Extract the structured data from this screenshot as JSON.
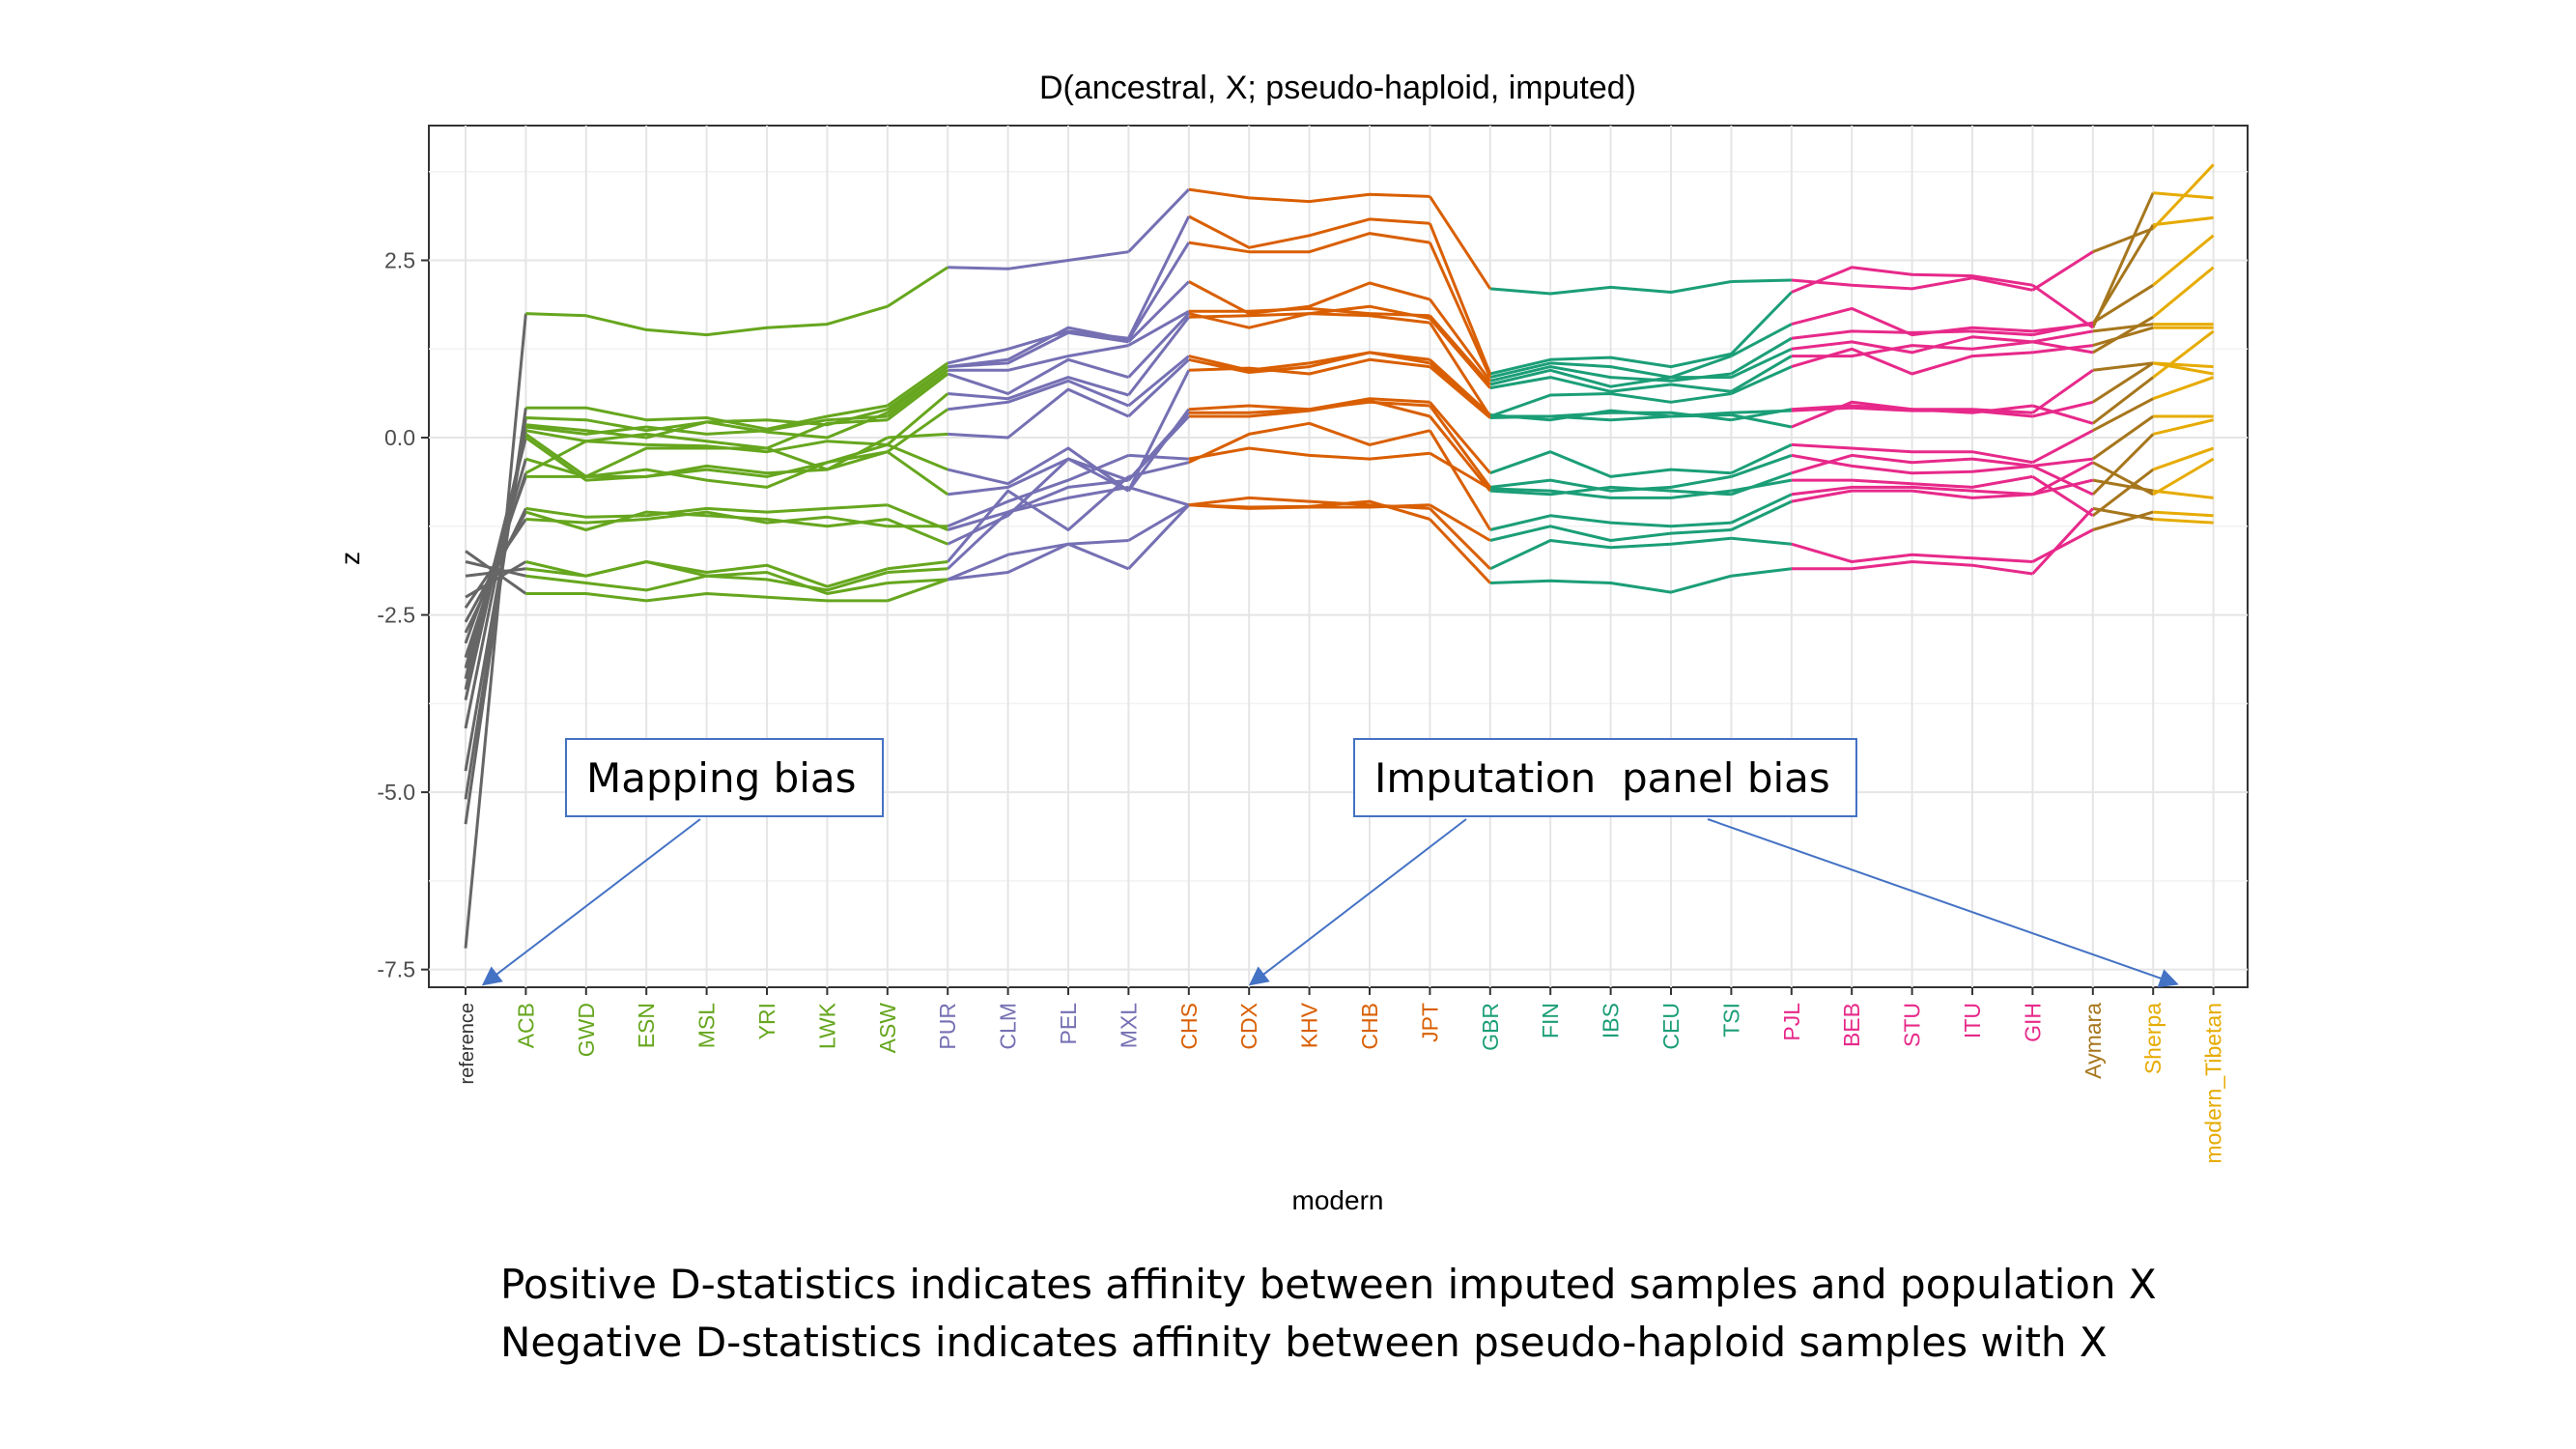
{
  "chart_data": {
    "type": "line",
    "title": "D(ancestral, X; pseudo-haploid, imputed)",
    "xlabel": "modern",
    "ylabel": "z",
    "ylim": [
      -7.75,
      4.4
    ],
    "yticks": [
      -7.5,
      -5.0,
      -2.5,
      0.0,
      2.5
    ],
    "ytick_labels": [
      "-7.5",
      "-5.0",
      "-2.5",
      "0.0",
      "2.5"
    ],
    "categories": [
      "reference",
      "ACB",
      "GWD",
      "ESN",
      "MSL",
      "YRI",
      "LWK",
      "ASW",
      "PUR",
      "CLM",
      "PEL",
      "MXL",
      "CHS",
      "CDX",
      "KHV",
      "CHB",
      "JPT",
      "GBR",
      "FIN",
      "IBS",
      "CEU",
      "TSI",
      "PJL",
      "BEB",
      "STU",
      "ITU",
      "GIH",
      "Aymara",
      "Sherpa",
      "modern_Tibetan"
    ],
    "category_colors": [
      "#333333",
      "#66a61e",
      "#66a61e",
      "#66a61e",
      "#66a61e",
      "#66a61e",
      "#66a61e",
      "#66a61e",
      "#7570b3",
      "#7570b3",
      "#7570b3",
      "#7570b3",
      "#d95f02",
      "#d95f02",
      "#d95f02",
      "#d95f02",
      "#d95f02",
      "#1b9e77",
      "#1b9e77",
      "#1b9e77",
      "#1b9e77",
      "#1b9e77",
      "#e7298a",
      "#e7298a",
      "#e7298a",
      "#e7298a",
      "#e7298a",
      "#a6761d",
      "#e6ab02",
      "#e6ab02"
    ],
    "groups": [
      {
        "color": "#666666",
        "segments": [
          [
            0,
            0
          ]
        ],
        "label_cat": 0
      },
      {
        "color": "#66a61e",
        "segments": [
          [
            1,
            7
          ]
        ]
      },
      {
        "color": "#66a61e",
        "segments": [
          [
            7,
            8
          ]
        ]
      },
      {
        "color": "#7570b3",
        "segments": [
          [
            8,
            11
          ]
        ]
      },
      {
        "color": "#7570b3",
        "segments": [
          [
            11,
            12
          ]
        ]
      },
      {
        "color": "#d95f02",
        "segments": [
          [
            12,
            16
          ]
        ]
      },
      {
        "color": "#d95f02",
        "segments": [
          [
            16,
            17
          ]
        ]
      },
      {
        "color": "#1b9e77",
        "segments": [
          [
            17,
            21
          ]
        ]
      },
      {
        "color": "#1b9e77",
        "segments": [
          [
            21,
            22
          ]
        ]
      },
      {
        "color": "#e7298a",
        "segments": [
          [
            22,
            26
          ]
        ]
      },
      {
        "color": "#e7298a",
        "segments": [
          [
            26,
            27
          ]
        ]
      },
      {
        "color": "#a6761d",
        "segments": [
          [
            27,
            28
          ]
        ]
      },
      {
        "color": "#e6ab02",
        "segments": [
          [
            28,
            29
          ]
        ]
      }
    ],
    "series": [
      {
        "values": [
          -7.2,
          1.75,
          1.72,
          1.52,
          1.45,
          1.55,
          1.6,
          1.85,
          2.4,
          2.38,
          2.5,
          2.62,
          3.5,
          3.38,
          3.33,
          3.43,
          3.4,
          2.1,
          2.03,
          2.12,
          2.05,
          2.2,
          2.22,
          2.15,
          2.1,
          2.25,
          2.08,
          2.62,
          2.95,
          3.85
        ]
      },
      {
        "values": [
          -5.45,
          0.42,
          0.42,
          0.25,
          0.28,
          0.12,
          0.3,
          0.45,
          1.05,
          1.25,
          1.5,
          1.4,
          3.12,
          2.68,
          2.85,
          3.08,
          3.02,
          0.9,
          1.1,
          1.13,
          1.0,
          1.18,
          2.05,
          2.4,
          2.3,
          2.28,
          2.15,
          1.55,
          3.45,
          3.38
        ]
      },
      {
        "values": [
          -5.1,
          0.28,
          0.25,
          0.1,
          0.22,
          0.25,
          0.18,
          0.4,
          1.0,
          1.1,
          1.55,
          1.38,
          2.75,
          2.62,
          2.62,
          2.88,
          2.75,
          0.85,
          1.05,
          1.0,
          0.85,
          1.15,
          1.6,
          1.82,
          1.45,
          1.55,
          1.5,
          1.6,
          3.0,
          3.1
        ]
      },
      {
        "values": [
          -4.7,
          0.18,
          0.1,
          0.0,
          0.22,
          0.08,
          0.0,
          0.35,
          1.0,
          1.05,
          1.48,
          1.35,
          2.2,
          1.75,
          1.85,
          2.18,
          1.95,
          0.8,
          1.0,
          0.85,
          0.8,
          0.9,
          1.4,
          1.5,
          1.48,
          1.5,
          1.45,
          1.62,
          2.15,
          2.85
        ]
      },
      {
        "values": [
          -4.1,
          0.15,
          0.05,
          0.15,
          0.05,
          0.1,
          0.25,
          0.3,
          0.95,
          0.95,
          1.15,
          1.3,
          1.78,
          1.78,
          1.82,
          1.75,
          1.72,
          0.75,
          0.95,
          0.72,
          0.85,
          0.85,
          1.25,
          1.35,
          1.2,
          1.42,
          1.35,
          1.2,
          1.7,
          2.4
        ]
      },
      {
        "values": [
          -3.7,
          0.1,
          -0.05,
          0.05,
          -0.05,
          -0.15,
          0.2,
          0.25,
          0.9,
          0.62,
          1.1,
          0.85,
          1.75,
          1.55,
          1.75,
          1.85,
          1.68,
          0.7,
          0.85,
          0.65,
          0.75,
          0.65,
          1.15,
          1.15,
          1.3,
          1.25,
          1.35,
          1.5,
          1.6,
          1.6
        ]
      },
      {
        "values": [
          -3.55,
          0.05,
          -0.55,
          -0.45,
          -0.6,
          -0.7,
          -0.35,
          -0.1,
          0.62,
          0.55,
          0.85,
          0.6,
          1.7,
          1.72,
          1.75,
          1.72,
          1.62,
          0.3,
          0.6,
          0.62,
          0.5,
          0.62,
          1.0,
          1.25,
          0.9,
          1.15,
          1.2,
          1.3,
          1.55,
          1.55
        ]
      },
      {
        "values": [
          -3.4,
          0.0,
          -0.6,
          -0.55,
          -0.4,
          -0.5,
          -0.45,
          -0.2,
          0.4,
          0.5,
          0.8,
          0.45,
          1.15,
          0.95,
          1.05,
          1.2,
          1.05,
          0.3,
          0.3,
          0.35,
          0.35,
          0.25,
          0.4,
          0.45,
          0.4,
          0.4,
          0.35,
          0.95,
          1.05,
          1.0
        ]
      },
      {
        "values": [
          -3.25,
          -0.3,
          -0.55,
          -0.15,
          -0.15,
          -0.15,
          -0.45,
          0.0,
          0.05,
          0.0,
          0.68,
          0.3,
          1.1,
          0.92,
          1.0,
          1.2,
          1.1,
          0.32,
          0.25,
          0.38,
          0.3,
          0.35,
          0.38,
          0.42,
          0.38,
          0.38,
          0.3,
          0.5,
          1.05,
          0.9
        ]
      },
      {
        "values": [
          -3.1,
          -0.5,
          -0.05,
          -0.1,
          -0.12,
          -0.2,
          -0.05,
          -0.1,
          -0.45,
          -0.65,
          -0.15,
          -0.75,
          0.95,
          0.98,
          0.9,
          1.1,
          1.0,
          0.28,
          0.3,
          0.25,
          0.3,
          0.32,
          0.15,
          0.5,
          0.4,
          0.35,
          0.45,
          0.2,
          0.85,
          1.5
        ]
      },
      {
        "values": [
          -2.9,
          -0.55,
          -0.55,
          -0.55,
          -0.45,
          -0.55,
          -0.35,
          -0.2,
          -0.8,
          -0.7,
          -0.3,
          -0.75,
          0.4,
          0.45,
          0.4,
          0.55,
          0.5,
          -0.5,
          -0.2,
          -0.55,
          -0.45,
          -0.5,
          -0.1,
          -0.15,
          -0.2,
          -0.2,
          -0.35,
          0.1,
          0.55,
          0.85
        ]
      },
      {
        "values": [
          -2.75,
          -1.0,
          -1.12,
          -1.1,
          -1.0,
          -1.05,
          -1.0,
          -0.95,
          -1.3,
          -1.05,
          -0.7,
          -0.6,
          0.35,
          0.35,
          0.4,
          0.5,
          0.45,
          -0.7,
          -0.6,
          -0.75,
          -0.7,
          -0.55,
          -0.25,
          -0.4,
          -0.5,
          -0.48,
          -0.4,
          -0.3,
          0.3,
          0.3
        ]
      },
      {
        "values": [
          -2.6,
          -1.05,
          -1.3,
          -1.05,
          -1.1,
          -1.15,
          -1.25,
          -1.15,
          -1.5,
          -1.1,
          -0.3,
          -0.6,
          0.3,
          0.3,
          0.38,
          0.52,
          0.3,
          -0.75,
          -0.8,
          -0.7,
          -0.75,
          -0.8,
          -0.5,
          -0.25,
          -0.35,
          -0.3,
          -0.4,
          -0.8,
          0.05,
          0.25
        ]
      },
      {
        "values": [
          -2.4,
          -1.15,
          -1.2,
          -1.15,
          -1.05,
          -1.2,
          -1.12,
          -1.25,
          -1.25,
          -0.9,
          -0.6,
          -0.25,
          -0.3,
          -0.15,
          -0.25,
          -0.3,
          -0.22,
          -0.72,
          -0.75,
          -0.85,
          -0.85,
          -0.75,
          -0.6,
          -0.6,
          -0.65,
          -0.7,
          -0.55,
          -1.1,
          -0.45,
          -0.15
        ]
      },
      {
        "values": [
          -2.25,
          -1.75,
          -1.95,
          -1.75,
          -1.9,
          -1.8,
          -2.1,
          -1.85,
          -1.75,
          -0.75,
          -1.3,
          -0.55,
          -0.35,
          0.05,
          0.2,
          -0.1,
          0.1,
          -1.3,
          -1.1,
          -1.2,
          -1.25,
          -1.2,
          -0.8,
          -0.7,
          -0.7,
          -0.75,
          -0.8,
          -0.35,
          -0.8,
          -0.3
        ]
      },
      {
        "values": [
          -1.95,
          -1.85,
          -1.95,
          -1.75,
          -1.95,
          -2.0,
          -2.15,
          -1.9,
          -1.85,
          -1.05,
          -0.85,
          -0.7,
          -0.95,
          -1.0,
          -0.98,
          -0.98,
          -0.95,
          -1.45,
          -1.25,
          -1.45,
          -1.35,
          -1.3,
          -0.9,
          -0.75,
          -0.75,
          -0.85,
          -0.8,
          -0.6,
          -0.75,
          -0.85
        ]
      },
      {
        "values": [
          -1.75,
          -1.95,
          -2.05,
          -2.15,
          -1.95,
          -1.9,
          -2.2,
          -2.05,
          -2.0,
          -1.65,
          -1.5,
          -1.45,
          -0.95,
          -0.85,
          -0.9,
          -0.95,
          -1.0,
          -1.85,
          -1.45,
          -1.55,
          -1.5,
          -1.42,
          -1.5,
          -1.75,
          -1.65,
          -1.7,
          -1.75,
          -1.3,
          -1.05,
          -1.1
        ]
      },
      {
        "values": [
          -1.6,
          -2.2,
          -2.2,
          -2.3,
          -2.2,
          -2.25,
          -2.3,
          -2.3,
          -2.0,
          -1.9,
          -1.5,
          -1.85,
          -0.95,
          -0.98,
          -0.97,
          -0.9,
          -1.15,
          -2.05,
          -2.02,
          -2.05,
          -2.18,
          -1.95,
          -1.85,
          -1.85,
          -1.75,
          -1.8,
          -1.92,
          -1.0,
          -1.15,
          -1.2
        ]
      }
    ]
  },
  "annotations": {
    "mapping_bias": "Mapping bias",
    "imputation_bias": "Imputation  panel bias"
  },
  "caption": {
    "line1": "Positive D-statistics indicates affinity between imputed samples and population X",
    "line2": "Negative D-statistics indicates affinity between pseudo-haploid samples with X"
  }
}
